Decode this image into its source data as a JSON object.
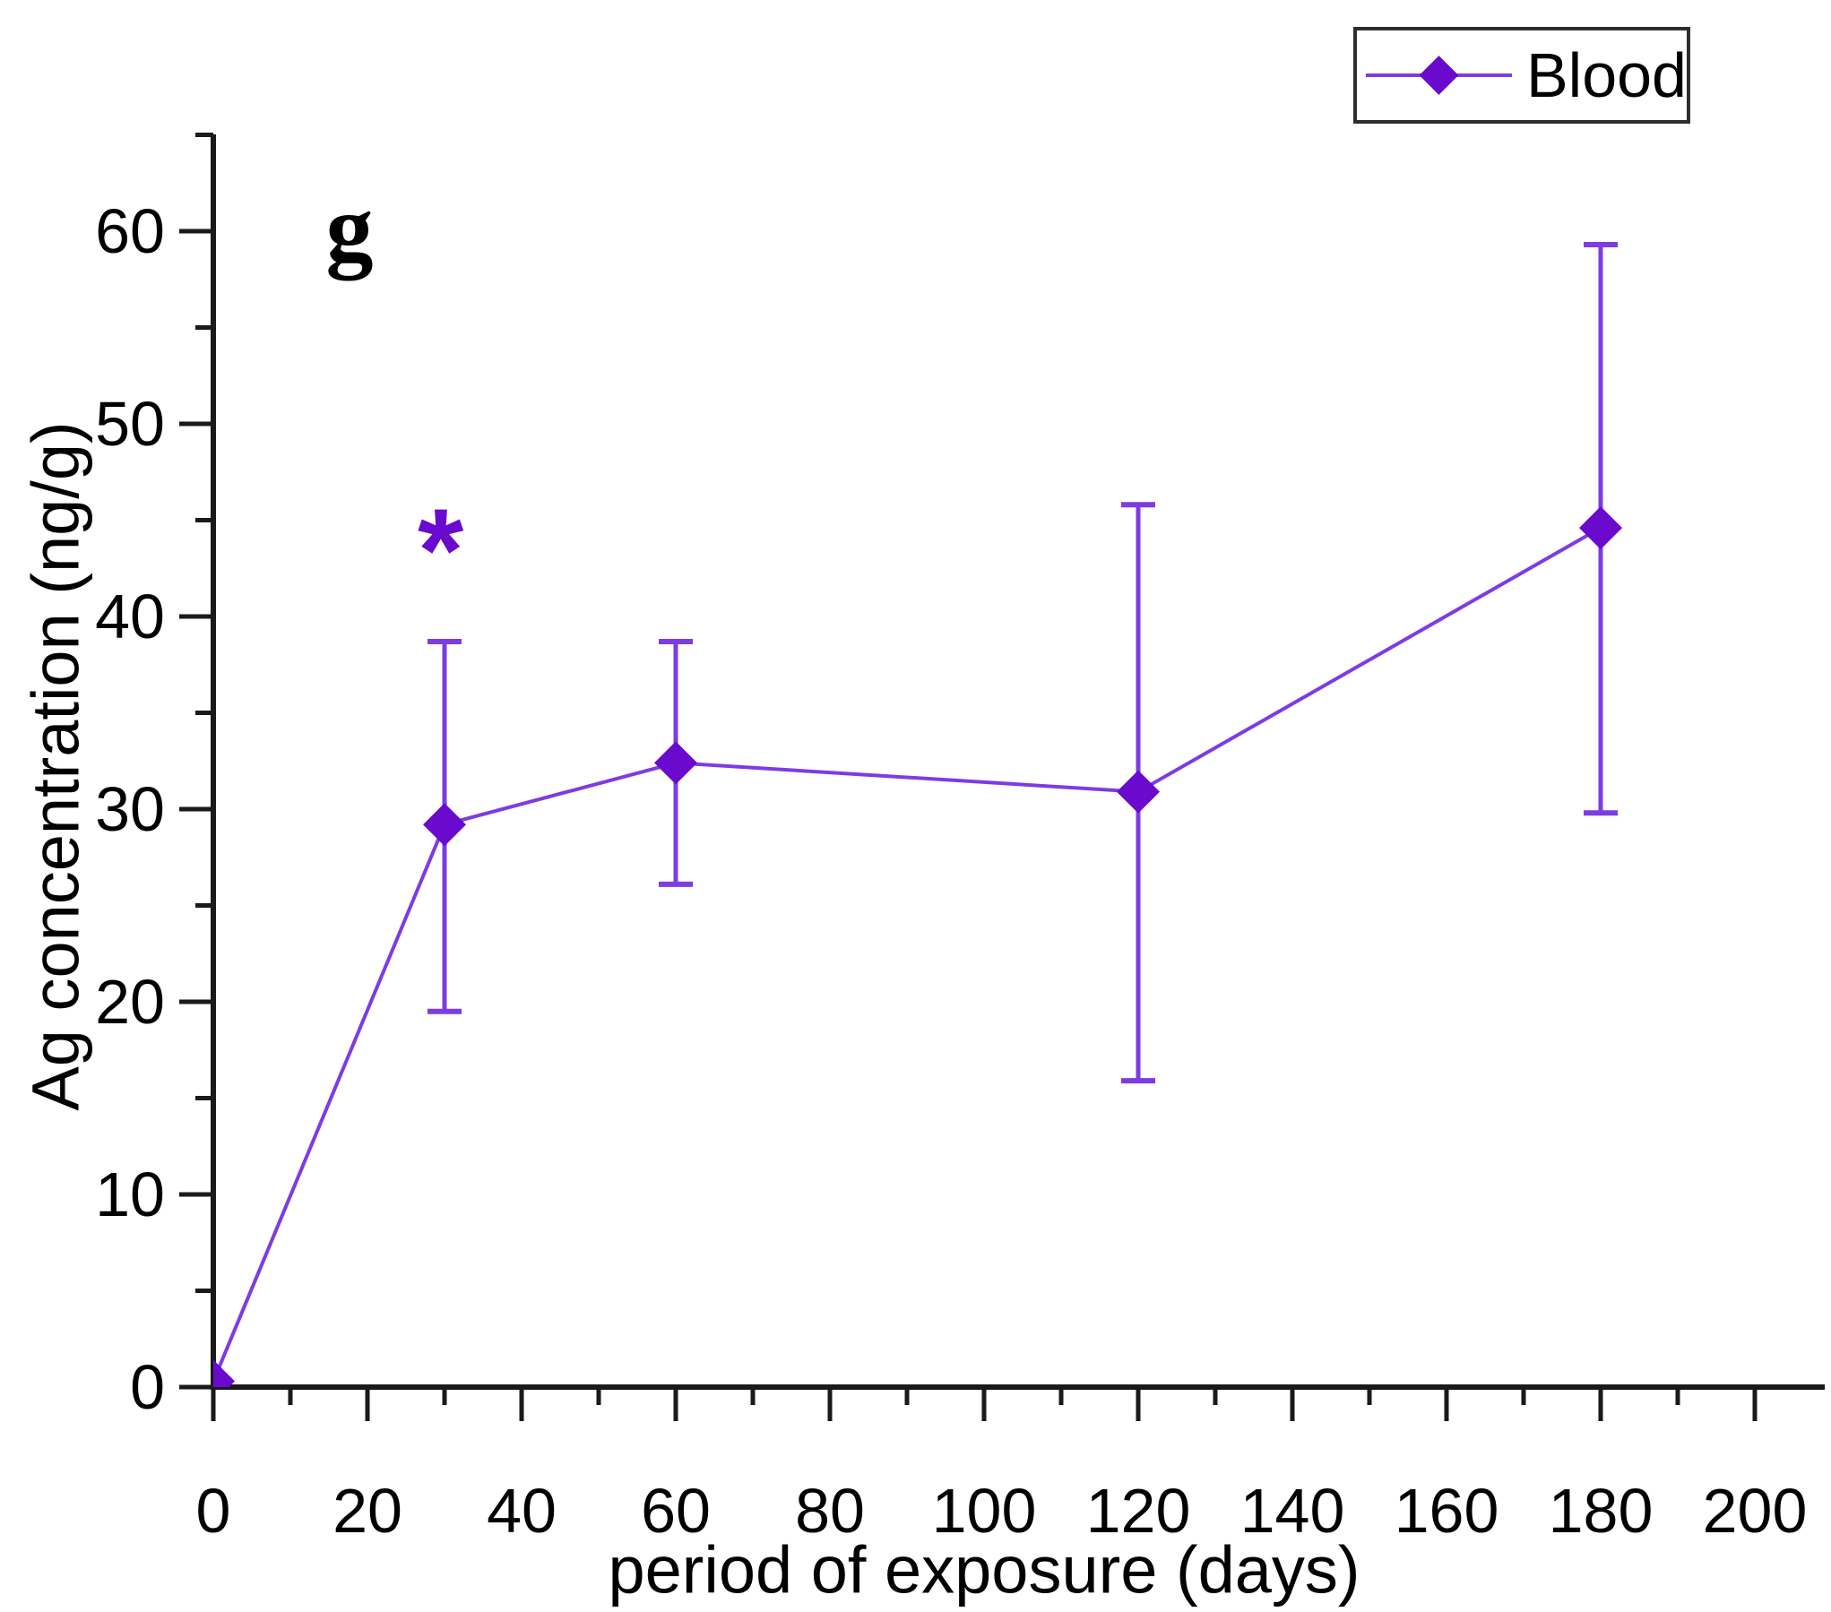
{
  "figure": {
    "panel_label": "g",
    "background": "#ffffff"
  },
  "legend": {
    "entries": [
      "Blood"
    ],
    "position": "top-right",
    "border_color": "#2e2e2e"
  },
  "colors": {
    "line": "#7d3ce3",
    "marker": "#6a0ace",
    "axis": "#1a1a1a",
    "text": "#000000"
  },
  "chart_data": {
    "type": "line",
    "title": "",
    "panel_label": "g",
    "xlabel": "period of exposure (days)",
    "ylabel": "Ag concentration (ng/g)",
    "xlim": [
      0,
      210
    ],
    "ylim": [
      0,
      65
    ],
    "grid": false,
    "xticks": [
      0,
      20,
      40,
      60,
      80,
      100,
      120,
      140,
      160,
      180,
      200
    ],
    "xticks_minor": [
      10,
      30,
      50,
      70,
      90,
      110,
      130,
      150,
      170,
      190
    ],
    "yticks": [
      0,
      10,
      20,
      30,
      40,
      50,
      60
    ],
    "yticks_minor": [
      5,
      15,
      25,
      35,
      45,
      55,
      65
    ],
    "legend_position": "top-right outside",
    "series": [
      {
        "name": "Blood",
        "marker": "diamond",
        "line_color": "#7d3ce3",
        "marker_color": "#6a0ace",
        "x": [
          0,
          30,
          60,
          120,
          180
        ],
        "y": [
          0.3,
          29.2,
          32.4,
          30.9,
          44.6
        ],
        "err_plus": [
          0,
          9.5,
          6.3,
          14.9,
          14.7
        ],
        "err_minus": [
          0,
          9.7,
          6.3,
          15.0,
          14.8
        ]
      }
    ],
    "annotations": [
      {
        "text": "*",
        "x": 29.5,
        "y": 44.4,
        "color": "#6a0ace"
      }
    ]
  }
}
